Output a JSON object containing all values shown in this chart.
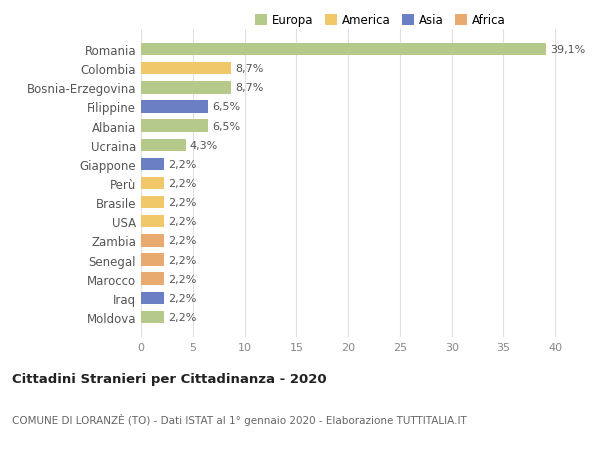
{
  "categories": [
    "Moldova",
    "Iraq",
    "Marocco",
    "Senegal",
    "Zambia",
    "USA",
    "Brasile",
    "Perù",
    "Giappone",
    "Ucraina",
    "Albania",
    "Filippine",
    "Bosnia-Erzegovina",
    "Colombia",
    "Romania"
  ],
  "values": [
    2.2,
    2.2,
    2.2,
    2.2,
    2.2,
    2.2,
    2.2,
    2.2,
    2.2,
    4.3,
    6.5,
    6.5,
    8.7,
    8.7,
    39.1
  ],
  "labels": [
    "2,2%",
    "2,2%",
    "2,2%",
    "2,2%",
    "2,2%",
    "2,2%",
    "2,2%",
    "2,2%",
    "2,2%",
    "4,3%",
    "6,5%",
    "6,5%",
    "8,7%",
    "8,7%",
    "39,1%"
  ],
  "colors": [
    "#b5c98a",
    "#6b7fc4",
    "#e8aa6e",
    "#e8aa6e",
    "#e8aa6e",
    "#f0c86a",
    "#f0c86a",
    "#f0c86a",
    "#6b7fc4",
    "#b5c98a",
    "#b5c98a",
    "#6b7fc4",
    "#b5c98a",
    "#f0c86a",
    "#b5c98a"
  ],
  "legend_labels": [
    "Europa",
    "America",
    "Asia",
    "Africa"
  ],
  "legend_colors": [
    "#b5c98a",
    "#f0c86a",
    "#6b7fc4",
    "#e8aa6e"
  ],
  "title": "Cittadini Stranieri per Cittadinanza - 2020",
  "subtitle": "COMUNE DI LORANZÈ (TO) - Dati ISTAT al 1° gennaio 2020 - Elaborazione TUTTITALIA.IT",
  "xlim": [
    0,
    42
  ],
  "xticks": [
    0,
    5,
    10,
    15,
    20,
    25,
    30,
    35,
    40
  ],
  "background_color": "#ffffff",
  "grid_color": "#e0e0e0"
}
